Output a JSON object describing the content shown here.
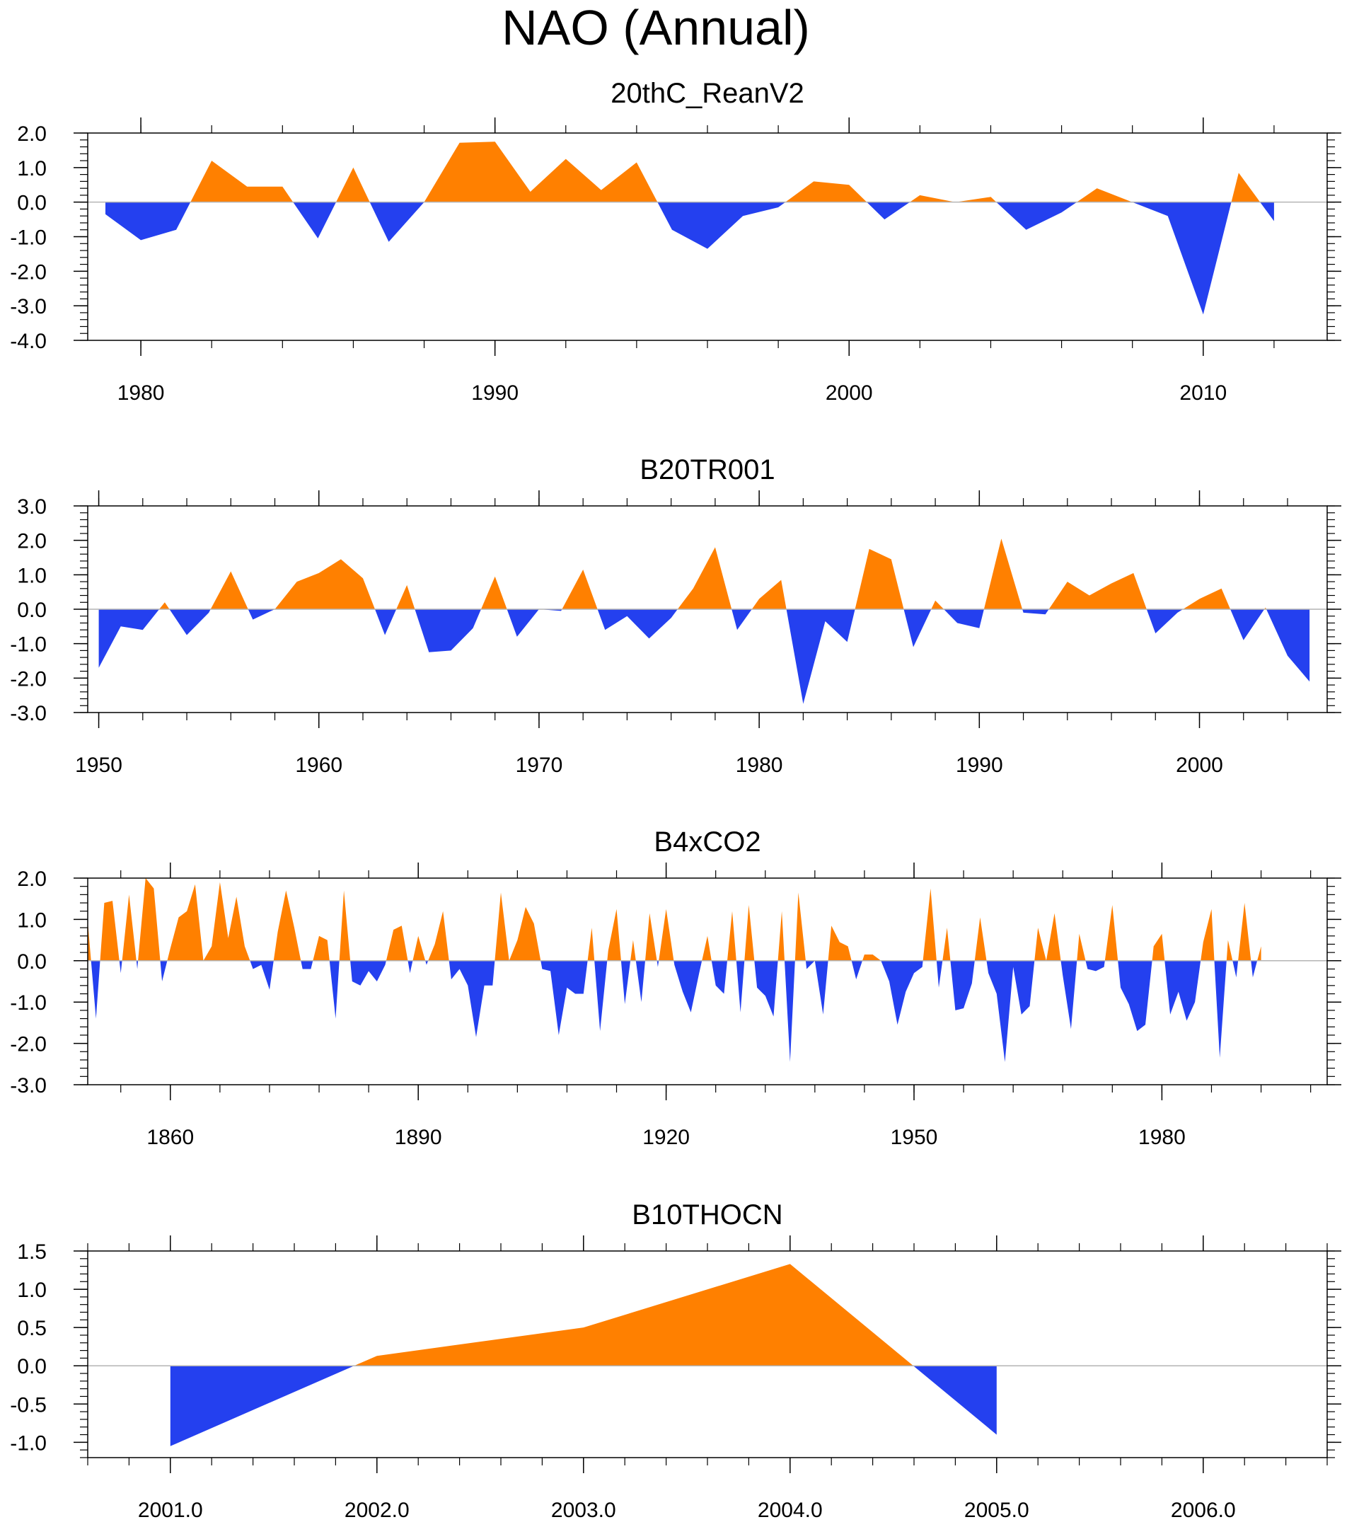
{
  "title": "NAO (Annual)",
  "colors": {
    "positive": "#ff8000",
    "negative": "#2440ef",
    "axis": "#000000",
    "zero_line": "#b4b4b4"
  },
  "chart_data": [
    {
      "type": "area",
      "title": "20thC_ReanV2",
      "xlim": [
        1978.5,
        2013.5
      ],
      "ylim": [
        -4,
        2
      ],
      "yticks": [
        2,
        1,
        0,
        -1,
        -2,
        -3,
        -4
      ],
      "ytick_labels": [
        "2.0",
        "1.0",
        "0.0",
        "-1.0",
        "-2.0",
        "-3.0",
        "-4.0"
      ],
      "xticks": [
        1980,
        1990,
        2000,
        2010
      ],
      "xtick_labels": [
        "1980",
        "1990",
        "2000",
        "2010"
      ],
      "x": [
        1979,
        1980,
        1981,
        1982,
        1983,
        1984,
        1985,
        1986,
        1987,
        1988,
        1989,
        1990,
        1991,
        1992,
        1993,
        1994,
        1995,
        1996,
        1997,
        1998,
        1999,
        2000,
        2001,
        2002,
        2003,
        2004,
        2005,
        2006,
        2007,
        2008,
        2009,
        2010,
        2011,
        2012
      ],
      "values": [
        -0.35,
        -1.1,
        -0.8,
        1.2,
        0.45,
        0.45,
        -1.05,
        1.0,
        -1.15,
        0.0,
        1.72,
        1.75,
        0.3,
        1.25,
        0.35,
        1.15,
        -0.8,
        -1.35,
        -0.4,
        -0.15,
        0.6,
        0.5,
        -0.5,
        0.2,
        0.0,
        0.15,
        -0.8,
        -0.3,
        0.4,
        0.0,
        -0.4,
        -3.25,
        0.85,
        -0.55
      ]
    },
    {
      "type": "area",
      "title": "B20TR001",
      "xlim": [
        1949.5,
        2005.8
      ],
      "ylim": [
        -3,
        3
      ],
      "yticks": [
        3,
        2,
        1,
        0,
        -1,
        -2,
        -3
      ],
      "ytick_labels": [
        "3.0",
        "2.0",
        "1.0",
        "0.0",
        "-1.0",
        "-2.0",
        "-3.0"
      ],
      "xticks": [
        1950,
        1960,
        1970,
        1980,
        1990,
        2000
      ],
      "xtick_labels": [
        "1950",
        "1960",
        "1970",
        "1980",
        "1990",
        "2000"
      ],
      "x": [
        1950,
        1951,
        1952,
        1953,
        1954,
        1955,
        1956,
        1957,
        1958,
        1959,
        1960,
        1961,
        1962,
        1963,
        1964,
        1965,
        1966,
        1967,
        1968,
        1969,
        1970,
        1971,
        1972,
        1973,
        1974,
        1975,
        1976,
        1977,
        1978,
        1979,
        1980,
        1981,
        1982,
        1983,
        1984,
        1985,
        1986,
        1987,
        1988,
        1989,
        1990,
        1991,
        1992,
        1993,
        1994,
        1995,
        1996,
        1997,
        1998,
        1999,
        2000,
        2001,
        2002,
        2003,
        2004,
        2005
      ],
      "values": [
        -1.7,
        -0.5,
        -0.6,
        0.2,
        -0.75,
        -0.1,
        1.1,
        -0.3,
        0.0,
        0.8,
        1.05,
        1.45,
        0.9,
        -0.75,
        0.7,
        -1.25,
        -1.2,
        -0.55,
        0.95,
        -0.8,
        0.0,
        -0.05,
        1.15,
        -0.6,
        -0.2,
        -0.85,
        -0.25,
        0.6,
        1.8,
        -0.6,
        0.3,
        0.85,
        -2.75,
        -0.35,
        -0.95,
        1.75,
        1.45,
        -1.1,
        0.25,
        -0.4,
        -0.55,
        2.05,
        -0.1,
        -0.15,
        0.8,
        0.4,
        0.75,
        1.05,
        -0.7,
        -0.1,
        0.3,
        0.6,
        -0.9,
        0.05,
        -1.35,
        -2.1
      ]
    },
    {
      "type": "area",
      "title": "B4xCO2",
      "xlim": [
        1850,
        2000
      ],
      "ylim": [
        -3,
        2
      ],
      "yticks": [
        2,
        1,
        0,
        -1,
        -2,
        -3
      ],
      "ytick_labels": [
        "2.0",
        "1.0",
        "0.0",
        "-1.0",
        "-2.0",
        "-3.0"
      ],
      "xticks": [
        1860,
        1890,
        1920,
        1950,
        1980
      ],
      "xtick_labels": [
        "1860",
        "1890",
        "1920",
        "1950",
        "1980"
      ],
      "x_start": 1850,
      "x_step": 1,
      "values": [
        0.95,
        -1.4,
        1.4,
        1.45,
        -0.3,
        1.6,
        -0.2,
        2.0,
        1.75,
        -0.5,
        0.3,
        1.05,
        1.2,
        1.85,
        0.0,
        0.35,
        1.9,
        0.55,
        1.55,
        0.35,
        -0.2,
        -0.1,
        -0.7,
        0.7,
        1.7,
        0.8,
        -0.2,
        -0.2,
        0.6,
        0.5,
        -1.4,
        1.7,
        -0.5,
        -0.6,
        -0.25,
        -0.5,
        -0.1,
        0.75,
        0.85,
        -0.3,
        0.6,
        -0.1,
        0.4,
        1.2,
        -0.45,
        -0.2,
        -0.6,
        -1.85,
        -0.6,
        -0.6,
        1.65,
        0.0,
        0.5,
        1.3,
        0.9,
        -0.2,
        -0.25,
        -1.8,
        -0.65,
        -0.8,
        -0.8,
        0.8,
        -1.7,
        0.25,
        1.25,
        -1.05,
        0.5,
        -1.0,
        1.15,
        -0.15,
        1.25,
        -0.1,
        -0.75,
        -1.25,
        -0.3,
        0.6,
        -0.6,
        -0.8,
        1.2,
        -1.25,
        1.35,
        -0.65,
        -0.85,
        -1.35,
        1.2,
        -2.45,
        1.65,
        -0.2,
        0.0,
        -1.3,
        0.85,
        0.45,
        0.35,
        -0.45,
        0.15,
        0.15,
        0.0,
        -0.5,
        -1.55,
        -0.75,
        -0.3,
        -0.15,
        1.75,
        -0.65,
        0.8,
        -1.2,
        -1.15,
        -0.55,
        1.05,
        -0.3,
        -0.8,
        -2.45,
        -0.15,
        -1.3,
        -1.1,
        0.8,
        0.0,
        1.15,
        -0.35,
        -1.65,
        0.65,
        -0.2,
        -0.25,
        -0.15,
        1.35,
        -0.65,
        -1.05,
        -1.7,
        -1.55,
        0.35,
        0.65,
        -1.3,
        -0.75,
        -1.45,
        -1.0,
        0.45,
        1.25,
        -2.35,
        0.5,
        -0.4,
        1.4,
        -0.4,
        0.35
      ]
    },
    {
      "type": "area",
      "title": "B10THOCN",
      "xlim": [
        2000.6,
        2006.6
      ],
      "ylim": [
        -1.2,
        1.5
      ],
      "yticks": [
        1.5,
        1.0,
        0.5,
        0.0,
        -0.5,
        -1.0
      ],
      "ytick_labels": [
        "1.5",
        "1.0",
        "0.5",
        "0.0",
        "-0.5",
        "-1.0"
      ],
      "xticks": [
        2001,
        2002,
        2003,
        2004,
        2005,
        2006
      ],
      "xtick_labels": [
        "2001.0",
        "2002.0",
        "2003.0",
        "2004.0",
        "2005.0",
        "2006.0"
      ],
      "x": [
        2001,
        2002,
        2003,
        2004,
        2005
      ],
      "values": [
        -1.05,
        0.13,
        0.5,
        1.33,
        -0.9
      ]
    }
  ]
}
